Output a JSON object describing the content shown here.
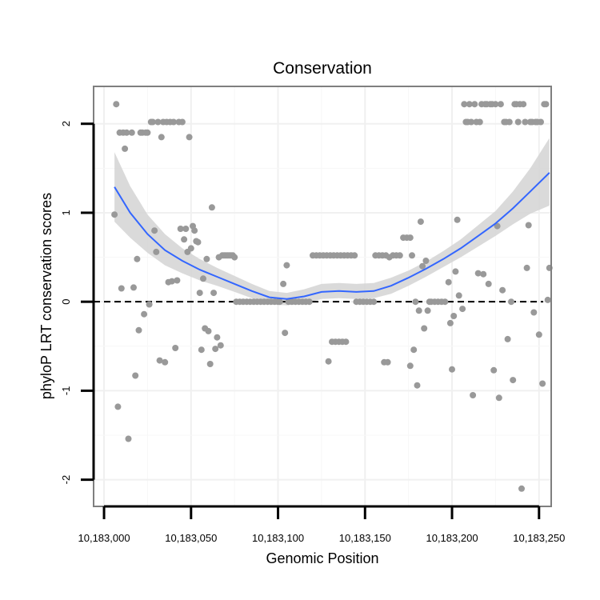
{
  "chart_data": {
    "type": "scatter",
    "title": "Conservation",
    "xlabel": "Genomic Position",
    "ylabel": "phyloP LRT conservation scores",
    "xlim": [
      10182994,
      10183257
    ],
    "ylim": [
      -2.3,
      2.42
    ],
    "x_ticks": [
      10183000,
      10183050,
      10183100,
      10183150,
      10183200,
      10183250
    ],
    "x_tick_labels": [
      "10,183,000",
      "10,183,050",
      "10,183,100",
      "10,183,150",
      "10,183,200",
      "10,183,250"
    ],
    "y_ticks": [
      -2,
      -1,
      0,
      1,
      2
    ],
    "y_tick_labels": [
      "-2",
      "-1",
      "0",
      "1",
      "2"
    ],
    "reference_line": {
      "y": 0,
      "style": "dashed"
    },
    "grid": true,
    "colors": {
      "points": "#999999",
      "smooth": "#3366ff",
      "band": "#d3d3d3",
      "frame": "#7f7f7f"
    },
    "points": [
      [
        10183006,
        0.98
      ],
      [
        10183007,
        2.22
      ],
      [
        10183008,
        -1.18
      ],
      [
        10183009,
        1.9
      ],
      [
        10183010,
        0.15
      ],
      [
        10183011,
        1.9
      ],
      [
        10183012,
        1.72
      ],
      [
        10183013,
        1.9
      ],
      [
        10183014,
        -1.54
      ],
      [
        10183016,
        1.9
      ],
      [
        10183017,
        0.16
      ],
      [
        10183018,
        -0.83
      ],
      [
        10183019,
        0.48
      ],
      [
        10183020,
        -0.32
      ],
      [
        10183021,
        1.9
      ],
      [
        10183022,
        1.9
      ],
      [
        10183023,
        -0.14
      ],
      [
        10183024,
        1.9
      ],
      [
        10183025,
        1.9
      ],
      [
        10183026,
        -0.03
      ],
      [
        10183027,
        2.02
      ],
      [
        10183028,
        2.02
      ],
      [
        10183029,
        0.8
      ],
      [
        10183030,
        0.56
      ],
      [
        10183031,
        2.02
      ],
      [
        10183032,
        -0.66
      ],
      [
        10183033,
        1.85
      ],
      [
        10183034,
        2.02
      ],
      [
        10183035,
        -0.68
      ],
      [
        10183036,
        2.02
      ],
      [
        10183037,
        0.22
      ],
      [
        10183038,
        2.02
      ],
      [
        10183039,
        0.23
      ],
      [
        10183040,
        2.02
      ],
      [
        10183041,
        -0.52
      ],
      [
        10183042,
        0.24
      ],
      [
        10183043,
        2.02
      ],
      [
        10183044,
        0.82
      ],
      [
        10183045,
        2.02
      ],
      [
        10183046,
        0.7
      ],
      [
        10183047,
        0.82
      ],
      [
        10183048,
        0.56
      ],
      [
        10183049,
        1.85
      ],
      [
        10183050,
        0.6
      ],
      [
        10183051,
        0.85
      ],
      [
        10183052,
        0.8
      ],
      [
        10183053,
        0.68
      ],
      [
        10183054,
        0.67
      ],
      [
        10183055,
        0.1
      ],
      [
        10183056,
        -0.54
      ],
      [
        10183057,
        0.26
      ],
      [
        10183058,
        -0.3
      ],
      [
        10183059,
        0.48
      ],
      [
        10183060,
        -0.33
      ],
      [
        10183061,
        -0.7
      ],
      [
        10183062,
        1.06
      ],
      [
        10183063,
        0.1
      ],
      [
        10183064,
        -0.53
      ],
      [
        10183065,
        -0.4
      ],
      [
        10183066,
        0.5
      ],
      [
        10183067,
        -0.49
      ],
      [
        10183068,
        0.52
      ],
      [
        10183069,
        0.52
      ],
      [
        10183070,
        0.52
      ],
      [
        10183071,
        0.52
      ],
      [
        10183072,
        0.52
      ],
      [
        10183073,
        0.52
      ],
      [
        10183074,
        0.52
      ],
      [
        10183075,
        0.5
      ],
      [
        10183076,
        0.0
      ],
      [
        10183078,
        0.0
      ],
      [
        10183080,
        0.0
      ],
      [
        10183082,
        0.0
      ],
      [
        10183084,
        0.0
      ],
      [
        10183086,
        0.0
      ],
      [
        10183088,
        0.0
      ],
      [
        10183090,
        0.0
      ],
      [
        10183092,
        0.0
      ],
      [
        10183094,
        0.0
      ],
      [
        10183096,
        0.0
      ],
      [
        10183098,
        0.0
      ],
      [
        10183100,
        0.0
      ],
      [
        10183101,
        0.0
      ],
      [
        10183103,
        0.2
      ],
      [
        10183104,
        -0.35
      ],
      [
        10183105,
        0.41
      ],
      [
        10183106,
        0.0
      ],
      [
        10183108,
        0.0
      ],
      [
        10183110,
        0.0
      ],
      [
        10183112,
        0.0
      ],
      [
        10183114,
        0.0
      ],
      [
        10183116,
        0.0
      ],
      [
        10183118,
        0.0
      ],
      [
        10183120,
        0.52
      ],
      [
        10183122,
        0.52
      ],
      [
        10183124,
        0.52
      ],
      [
        10183126,
        0.52
      ],
      [
        10183128,
        0.52
      ],
      [
        10183129,
        -0.67
      ],
      [
        10183130,
        0.52
      ],
      [
        10183131,
        -0.45
      ],
      [
        10183132,
        0.52
      ],
      [
        10183133,
        -0.45
      ],
      [
        10183134,
        0.52
      ],
      [
        10183135,
        -0.45
      ],
      [
        10183136,
        0.52
      ],
      [
        10183137,
        -0.45
      ],
      [
        10183138,
        0.52
      ],
      [
        10183139,
        -0.45
      ],
      [
        10183140,
        0.52
      ],
      [
        10183142,
        0.52
      ],
      [
        10183144,
        0.52
      ],
      [
        10183145,
        0.0
      ],
      [
        10183147,
        0.0
      ],
      [
        10183149,
        0.0
      ],
      [
        10183151,
        0.0
      ],
      [
        10183153,
        0.0
      ],
      [
        10183155,
        0.0
      ],
      [
        10183156,
        0.52
      ],
      [
        10183158,
        0.52
      ],
      [
        10183160,
        0.52
      ],
      [
        10183161,
        -0.68
      ],
      [
        10183162,
        0.52
      ],
      [
        10183163,
        -0.68
      ],
      [
        10183164,
        0.5
      ],
      [
        10183166,
        0.52
      ],
      [
        10183168,
        0.52
      ],
      [
        10183170,
        0.52
      ],
      [
        10183172,
        0.72
      ],
      [
        10183174,
        0.72
      ],
      [
        10183176,
        0.72
      ],
      [
        10183176,
        -0.72
      ],
      [
        10183177,
        0.52
      ],
      [
        10183178,
        -0.54
      ],
      [
        10183179,
        0.0
      ],
      [
        10183180,
        -0.94
      ],
      [
        10183181,
        -0.1
      ],
      [
        10183182,
        0.9
      ],
      [
        10183183,
        0.4
      ],
      [
        10183184,
        -0.3
      ],
      [
        10183185,
        0.46
      ],
      [
        10183186,
        -0.1
      ],
      [
        10183187,
        0.0
      ],
      [
        10183188,
        0.0
      ],
      [
        10183190,
        0.0
      ],
      [
        10183192,
        0.0
      ],
      [
        10183194,
        0.0
      ],
      [
        10183196,
        0.0
      ],
      [
        10183198,
        0.22
      ],
      [
        10183199,
        -0.24
      ],
      [
        10183200,
        -0.76
      ],
      [
        10183201,
        -0.16
      ],
      [
        10183202,
        0.34
      ],
      [
        10183203,
        0.92
      ],
      [
        10183204,
        0.07
      ],
      [
        10183206,
        -0.08
      ],
      [
        10183207,
        2.22
      ],
      [
        10183208,
        2.02
      ],
      [
        10183209,
        2.02
      ],
      [
        10183210,
        2.22
      ],
      [
        10183211,
        2.02
      ],
      [
        10183212,
        -1.05
      ],
      [
        10183213,
        2.22
      ],
      [
        10183214,
        2.02
      ],
      [
        10183215,
        0.32
      ],
      [
        10183216,
        2.02
      ],
      [
        10183217,
        2.22
      ],
      [
        10183218,
        0.31
      ],
      [
        10183219,
        2.22
      ],
      [
        10183220,
        2.22
      ],
      [
        10183221,
        0.2
      ],
      [
        10183222,
        2.22
      ],
      [
        10183223,
        2.22
      ],
      [
        10183224,
        -0.77
      ],
      [
        10183225,
        2.22
      ],
      [
        10183226,
        0.85
      ],
      [
        10183227,
        -1.08
      ],
      [
        10183228,
        2.22
      ],
      [
        10183229,
        0.13
      ],
      [
        10183230,
        2.02
      ],
      [
        10183231,
        2.02
      ],
      [
        10183232,
        -0.42
      ],
      [
        10183233,
        2.02
      ],
      [
        10183234,
        0.0
      ],
      [
        10183235,
        -0.88
      ],
      [
        10183236,
        2.22
      ],
      [
        10183237,
        2.22
      ],
      [
        10183238,
        2.02
      ],
      [
        10183239,
        2.22
      ],
      [
        10183240,
        -2.1
      ],
      [
        10183241,
        2.22
      ],
      [
        10183242,
        2.02
      ],
      [
        10183243,
        0.38
      ],
      [
        10183244,
        0.86
      ],
      [
        10183245,
        2.02
      ],
      [
        10183246,
        2.02
      ],
      [
        10183247,
        -0.12
      ],
      [
        10183248,
        2.02
      ],
      [
        10183249,
        2.02
      ],
      [
        10183250,
        -0.37
      ],
      [
        10183251,
        2.02
      ],
      [
        10183252,
        -0.92
      ],
      [
        10183253,
        2.22
      ],
      [
        10183254,
        2.22
      ],
      [
        10183255,
        0.02
      ],
      [
        10183256,
        0.38
      ]
    ],
    "smooth": [
      [
        10183006,
        1.29
      ],
      [
        10183015,
        1.0
      ],
      [
        10183025,
        0.76
      ],
      [
        10183035,
        0.58
      ],
      [
        10183045,
        0.46
      ],
      [
        10183055,
        0.36
      ],
      [
        10183065,
        0.28
      ],
      [
        10183075,
        0.2
      ],
      [
        10183085,
        0.12
      ],
      [
        10183095,
        0.05
      ],
      [
        10183105,
        0.03
      ],
      [
        10183115,
        0.06
      ],
      [
        10183125,
        0.11
      ],
      [
        10183135,
        0.12
      ],
      [
        10183145,
        0.11
      ],
      [
        10183155,
        0.12
      ],
      [
        10183165,
        0.18
      ],
      [
        10183175,
        0.27
      ],
      [
        10183185,
        0.37
      ],
      [
        10183195,
        0.48
      ],
      [
        10183205,
        0.6
      ],
      [
        10183215,
        0.74
      ],
      [
        10183225,
        0.88
      ],
      [
        10183235,
        1.05
      ],
      [
        10183245,
        1.24
      ],
      [
        10183256,
        1.45
      ]
    ],
    "band_upper": [
      [
        10183006,
        1.68
      ],
      [
        10183015,
        1.3
      ],
      [
        10183025,
        0.98
      ],
      [
        10183035,
        0.76
      ],
      [
        10183045,
        0.6
      ],
      [
        10183055,
        0.48
      ],
      [
        10183065,
        0.38
      ],
      [
        10183075,
        0.29
      ],
      [
        10183085,
        0.2
      ],
      [
        10183095,
        0.12
      ],
      [
        10183105,
        0.1
      ],
      [
        10183115,
        0.14
      ],
      [
        10183125,
        0.2
      ],
      [
        10183135,
        0.21
      ],
      [
        10183145,
        0.2
      ],
      [
        10183155,
        0.21
      ],
      [
        10183165,
        0.27
      ],
      [
        10183175,
        0.35
      ],
      [
        10183185,
        0.45
      ],
      [
        10183195,
        0.57
      ],
      [
        10183205,
        0.7
      ],
      [
        10183215,
        0.86
      ],
      [
        10183225,
        1.02
      ],
      [
        10183235,
        1.24
      ],
      [
        10183245,
        1.5
      ],
      [
        10183256,
        1.84
      ]
    ],
    "band_lower": [
      [
        10183006,
        0.9
      ],
      [
        10183015,
        0.72
      ],
      [
        10183025,
        0.55
      ],
      [
        10183035,
        0.41
      ],
      [
        10183045,
        0.32
      ],
      [
        10183055,
        0.24
      ],
      [
        10183065,
        0.18
      ],
      [
        10183075,
        0.11
      ],
      [
        10183085,
        0.04
      ],
      [
        10183095,
        -0.03
      ],
      [
        10183105,
        -0.04
      ],
      [
        10183115,
        -0.02
      ],
      [
        10183125,
        0.03
      ],
      [
        10183135,
        0.04
      ],
      [
        10183145,
        0.03
      ],
      [
        10183155,
        0.04
      ],
      [
        10183165,
        0.09
      ],
      [
        10183175,
        0.18
      ],
      [
        10183185,
        0.28
      ],
      [
        10183195,
        0.39
      ],
      [
        10183205,
        0.5
      ],
      [
        10183215,
        0.62
      ],
      [
        10183225,
        0.74
      ],
      [
        10183235,
        0.87
      ],
      [
        10183245,
        0.99
      ],
      [
        10183256,
        1.08
      ]
    ]
  }
}
